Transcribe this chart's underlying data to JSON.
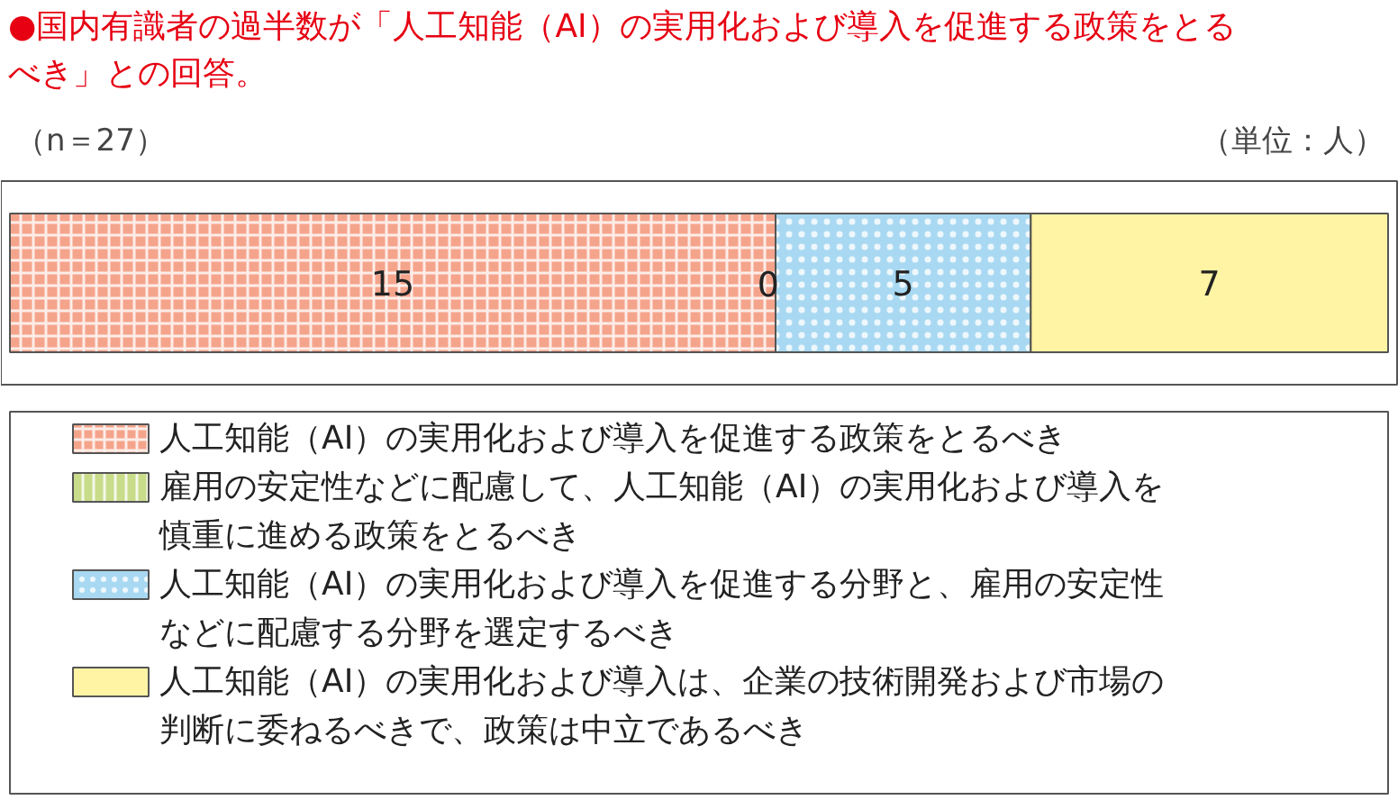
{
  "chart_data": {
    "type": "bar",
    "orientation": "horizontal",
    "stacked": true,
    "title": "●国内有識者の過半数が「人工知能（AI）の実用化および導入を促進する政策をとるべき」との回答。",
    "categories": [
      null
    ],
    "series": [
      {
        "name": "人工知能（AI）の実用化および導入を促進する政策をとるべき",
        "color": "#f5a48c",
        "values": [
          15
        ],
        "value_labels": [
          "15"
        ]
      },
      {
        "name": "雇用の安定性などに配慮して、人工知能（AI）の実用化および導入を慎重に進める政策をとるべき",
        "color": "#c8dc8a",
        "values": [
          0
        ],
        "value_labels": [
          null
        ]
      },
      {
        "name": "人工知能（AI）の実用化および導入を促進する分野と、雇用の安定性などに配慮する分野を選定するべき",
        "color": "#a9d9f2",
        "values": [
          5
        ],
        "value_labels": [
          "5"
        ]
      },
      {
        "name": "人工知能（AI）の実用化および導入は、企業の技術開発および市場の判断に委ねるべきで、政策は中立であるべき",
        "color": "#fff4a3",
        "values": [
          7
        ],
        "value_labels": [
          "7"
        ]
      }
    ],
    "legend": "bottom",
    "annotations": [
      "（n＝27）",
      "（単位：人）",
      {
        "text": "0",
        "x": 15
      }
    ]
  }
}
